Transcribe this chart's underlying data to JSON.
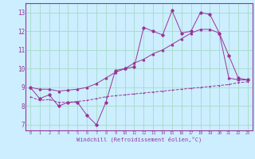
{
  "xlabel": "Windchill (Refroidissement éolien,°C)",
  "bg_color": "#cceeff",
  "grid_color": "#aaddcc",
  "line_color": "#993399",
  "x_ticks": [
    0,
    1,
    2,
    3,
    4,
    5,
    6,
    7,
    8,
    9,
    10,
    11,
    12,
    13,
    14,
    15,
    16,
    17,
    18,
    19,
    20,
    21,
    22,
    23
  ],
  "y_ticks": [
    7,
    8,
    9,
    10,
    11,
    12,
    13
  ],
  "ylim": [
    6.7,
    13.5
  ],
  "xlim": [
    -0.5,
    23.5
  ],
  "line1_x": [
    0,
    1,
    2,
    3,
    4,
    5,
    6,
    7,
    8,
    9,
    10,
    11,
    12,
    13,
    14,
    15,
    16,
    17,
    18,
    19,
    20,
    21,
    22,
    23
  ],
  "line1_y": [
    9.0,
    8.4,
    8.6,
    8.0,
    8.2,
    8.2,
    7.5,
    7.0,
    8.2,
    9.9,
    10.0,
    10.1,
    12.2,
    12.0,
    11.8,
    13.1,
    11.9,
    12.0,
    13.0,
    12.9,
    11.9,
    10.7,
    9.5,
    9.4
  ],
  "line2_x": [
    0,
    1,
    2,
    3,
    4,
    5,
    6,
    7,
    8,
    9,
    10,
    11,
    12,
    13,
    14,
    15,
    16,
    17,
    18,
    19,
    20,
    21,
    22,
    23
  ],
  "line2_y": [
    9.0,
    8.9,
    8.9,
    8.8,
    8.85,
    8.9,
    9.0,
    9.2,
    9.5,
    9.8,
    10.0,
    10.3,
    10.5,
    10.8,
    11.0,
    11.3,
    11.6,
    11.9,
    12.1,
    12.1,
    11.9,
    9.5,
    9.4,
    9.4
  ],
  "line3_x": [
    0,
    1,
    2,
    3,
    4,
    5,
    6,
    7,
    8,
    9,
    10,
    11,
    12,
    13,
    14,
    15,
    16,
    17,
    18,
    19,
    20,
    21,
    22,
    23
  ],
  "line3_y": [
    8.5,
    8.3,
    8.35,
    8.2,
    8.2,
    8.25,
    8.3,
    8.4,
    8.5,
    8.55,
    8.6,
    8.65,
    8.7,
    8.75,
    8.8,
    8.85,
    8.9,
    8.95,
    9.0,
    9.05,
    9.1,
    9.15,
    9.25,
    9.3
  ]
}
